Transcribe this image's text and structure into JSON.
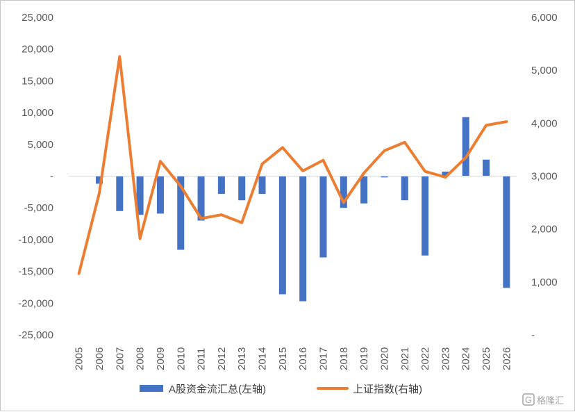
{
  "colors": {
    "bar": "#4472C4",
    "line": "#ED7D31",
    "axis_text": "#595959",
    "axis_line": "#d9d9d9",
    "watermark": "#9a9a9a"
  },
  "chart_data": {
    "type": "bar",
    "categories": [
      "2005",
      "2006",
      "2007",
      "2008",
      "2009",
      "2010",
      "2011",
      "2012",
      "2013",
      "2014",
      "2015",
      "2016",
      "2017",
      "2018",
      "2019",
      "2020",
      "2021",
      "2022",
      "2023",
      "2024",
      "2025",
      "2026"
    ],
    "series": [
      {
        "name": "A股资金流汇总(左轴)",
        "type": "bar",
        "axis": "left",
        "values": [
          0,
          -1200,
          -5500,
          -6100,
          -5900,
          -11600,
          -7000,
          -2800,
          -3800,
          -2800,
          -18600,
          -19700,
          -12800,
          -5000,
          -4300,
          -200,
          -3800,
          -12500,
          700,
          9300,
          2600,
          -17600
        ]
      },
      {
        "name": "上证指数(右轴)",
        "type": "line",
        "axis": "right",
        "values": [
          1160,
          2680,
          5260,
          1820,
          3280,
          2810,
          2200,
          2270,
          2120,
          3230,
          3540,
          3100,
          3300,
          2500,
          3060,
          3480,
          3640,
          3090,
          2980,
          3350,
          3960,
          4030
        ]
      }
    ],
    "y_left": {
      "range": [
        -25000,
        25000
      ],
      "ticks": [
        25000,
        20000,
        15000,
        10000,
        5000,
        0,
        -5000,
        -10000,
        -15000,
        -20000,
        -25000
      ],
      "tick_labels": [
        "25,000",
        "20,000",
        "15,000",
        "10,000",
        "5,000",
        "-",
        "-5,000",
        "-10,000",
        "-15,000",
        "-20,000",
        "-25,000"
      ]
    },
    "y_right": {
      "range": [
        0,
        6000
      ],
      "ticks": [
        6000,
        5000,
        4000,
        3000,
        2000,
        1000,
        0
      ],
      "tick_labels": [
        "6,000",
        "5,000",
        "4,000",
        "3,000",
        "2,000",
        "1,000",
        "-"
      ]
    },
    "title": "",
    "xlabel": "",
    "ylabel": "",
    "grid": false,
    "legend": "bottom"
  },
  "watermark": {
    "text": "格隆汇"
  }
}
